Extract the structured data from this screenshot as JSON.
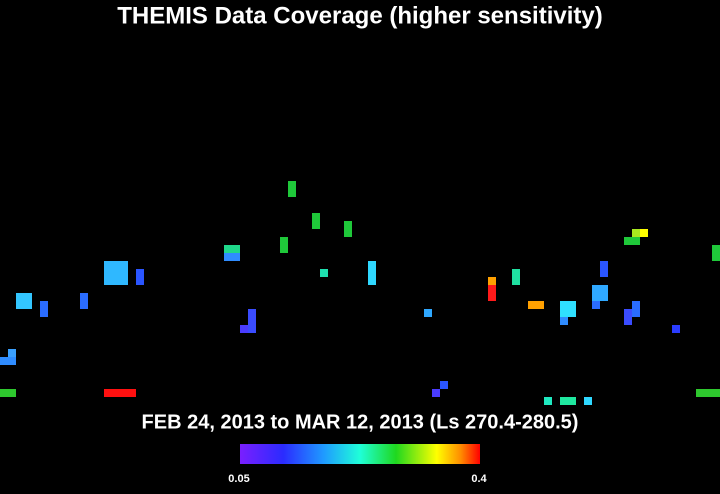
{
  "title": "THEMIS Data Coverage (higher sensitivity)",
  "subtitle": "FEB 24, 2013 to MAR 12, 2013 (Ls 270.4-280.5)",
  "colorbar": {
    "min": 0.05,
    "max": 0.4
  }
}
